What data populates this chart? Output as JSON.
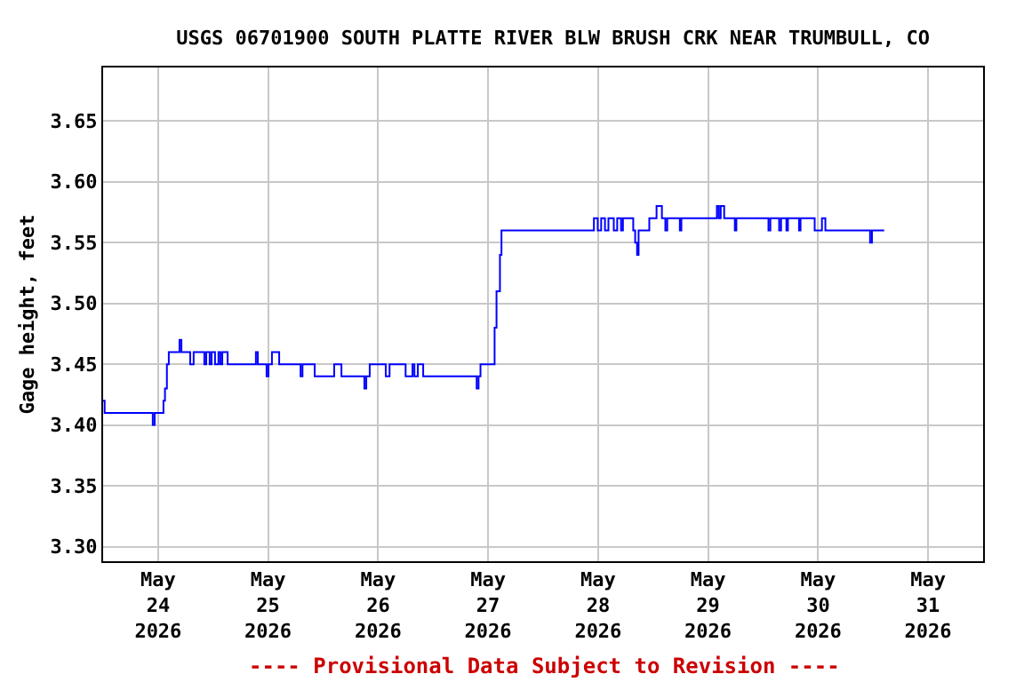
{
  "chart_data": {
    "type": "step",
    "title": "USGS 06701900 SOUTH PLATTE RIVER BLW BRUSH CRK NEAR TRUMBULL, CO",
    "ylabel": "Gage height, feet",
    "annotations": [
      "---- Provisional Data Subject to Revision ----"
    ],
    "x": [
      "2026-05-23T12:00",
      "2026-05-23T12:20",
      "2026-05-23T22:50",
      "2026-05-23T23:15",
      "2026-05-24T01:10",
      "2026-05-24T01:30",
      "2026-05-24T01:55",
      "2026-05-24T02:20",
      "2026-05-24T04:40",
      "2026-05-24T05:05",
      "2026-05-24T07:00",
      "2026-05-24T07:45",
      "2026-05-24T10:05",
      "2026-05-24T10:30",
      "2026-05-24T11:15",
      "2026-05-24T11:40",
      "2026-05-24T12:25",
      "2026-05-24T13:10",
      "2026-05-24T13:35",
      "2026-05-24T14:00",
      "2026-05-24T15:10",
      "2026-05-24T21:20",
      "2026-05-24T21:45",
      "2026-05-24T23:40",
      "2026-05-25T00:05",
      "2026-05-25T00:50",
      "2026-05-25T02:25",
      "2026-05-25T07:05",
      "2026-05-25T07:30",
      "2026-05-25T10:10",
      "2026-05-25T14:25",
      "2026-05-25T16:00",
      "2026-05-25T21:00",
      "2026-05-25T21:25",
      "2026-05-25T22:10",
      "2026-05-26T01:40",
      "2026-05-26T02:30",
      "2026-05-26T06:00",
      "2026-05-26T07:30",
      "2026-05-26T07:55",
      "2026-05-26T08:40",
      "2026-05-26T09:50",
      "2026-05-26T21:30",
      "2026-05-26T21:55",
      "2026-05-26T22:20",
      "2026-05-27T01:25",
      "2026-05-27T01:50",
      "2026-05-27T02:35",
      "2026-05-27T02:55",
      "2026-05-27T23:05",
      "2026-05-27T23:55",
      "2026-05-28T00:40",
      "2026-05-28T01:30",
      "2026-05-28T02:15",
      "2026-05-28T03:25",
      "2026-05-28T04:10",
      "2026-05-28T05:00",
      "2026-05-28T05:25",
      "2026-05-28T07:40",
      "2026-05-28T08:05",
      "2026-05-28T08:30",
      "2026-05-28T08:50",
      "2026-05-28T11:10",
      "2026-05-28T12:45",
      "2026-05-28T13:55",
      "2026-05-28T14:40",
      "2026-05-28T15:05",
      "2026-05-28T17:50",
      "2026-05-28T18:10",
      "2026-05-29T01:55",
      "2026-05-29T02:20",
      "2026-05-29T02:45",
      "2026-05-29T03:30",
      "2026-05-29T05:50",
      "2026-05-29T06:10",
      "2026-05-29T13:10",
      "2026-05-29T13:35",
      "2026-05-29T15:30",
      "2026-05-29T15:55",
      "2026-05-29T17:05",
      "2026-05-29T17:25",
      "2026-05-29T19:50",
      "2026-05-29T20:10",
      "2026-05-29T23:15",
      "2026-05-30T00:50",
      "2026-05-30T01:35",
      "2026-05-30T11:20",
      "2026-05-30T11:45",
      "2026-05-30T14:25"
    ],
    "series": [
      {
        "color": "#0000ff",
        "values": [
          3.42,
          3.41,
          3.4,
          3.41,
          3.42,
          3.43,
          3.45,
          3.46,
          3.47,
          3.46,
          3.45,
          3.46,
          3.45,
          3.46,
          3.45,
          3.46,
          3.45,
          3.46,
          3.45,
          3.46,
          3.45,
          3.46,
          3.45,
          3.44,
          3.45,
          3.46,
          3.45,
          3.44,
          3.45,
          3.44,
          3.45,
          3.44,
          3.43,
          3.44,
          3.45,
          3.44,
          3.45,
          3.44,
          3.45,
          3.44,
          3.45,
          3.44,
          3.43,
          3.44,
          3.45,
          3.48,
          3.51,
          3.54,
          3.56,
          3.57,
          3.56,
          3.57,
          3.56,
          3.57,
          3.56,
          3.57,
          3.56,
          3.57,
          3.56,
          3.55,
          3.54,
          3.56,
          3.57,
          3.58,
          3.57,
          3.56,
          3.57,
          3.56,
          3.57,
          3.58,
          3.57,
          3.58,
          3.57,
          3.56,
          3.57,
          3.56,
          3.57,
          3.56,
          3.57,
          3.56,
          3.57,
          3.56,
          3.57,
          3.56,
          3.57,
          3.56,
          3.55,
          3.56,
          3.56
        ]
      }
    ],
    "xlim": [
      "2026-05-23T12:00",
      "2026-05-31T12:00"
    ],
    "xticks": [
      {
        "value": "2026-05-24",
        "label": "May\n24\n2026"
      },
      {
        "value": "2026-05-25",
        "label": "May\n25\n2026"
      },
      {
        "value": "2026-05-26",
        "label": "May\n26\n2026"
      },
      {
        "value": "2026-05-27",
        "label": "May\n27\n2026"
      },
      {
        "value": "2026-05-28",
        "label": "May\n28\n2026"
      },
      {
        "value": "2026-05-29",
        "label": "May\n29\n2026"
      },
      {
        "value": "2026-05-30",
        "label": "May\n30\n2026"
      },
      {
        "value": "2026-05-31",
        "label": "May\n31\n2026"
      }
    ],
    "ylim": [
      3.288,
      3.694
    ],
    "yticks": [
      {
        "value": 3.3,
        "label": "3.30"
      },
      {
        "value": 3.35,
        "label": "3.35"
      },
      {
        "value": 3.4,
        "label": "3.40"
      },
      {
        "value": 3.45,
        "label": "3.45"
      },
      {
        "value": 3.5,
        "label": "3.50"
      },
      {
        "value": 3.55,
        "label": "3.55"
      },
      {
        "value": 3.6,
        "label": "3.60"
      },
      {
        "value": 3.65,
        "label": "3.65"
      }
    ],
    "grid": true
  }
}
